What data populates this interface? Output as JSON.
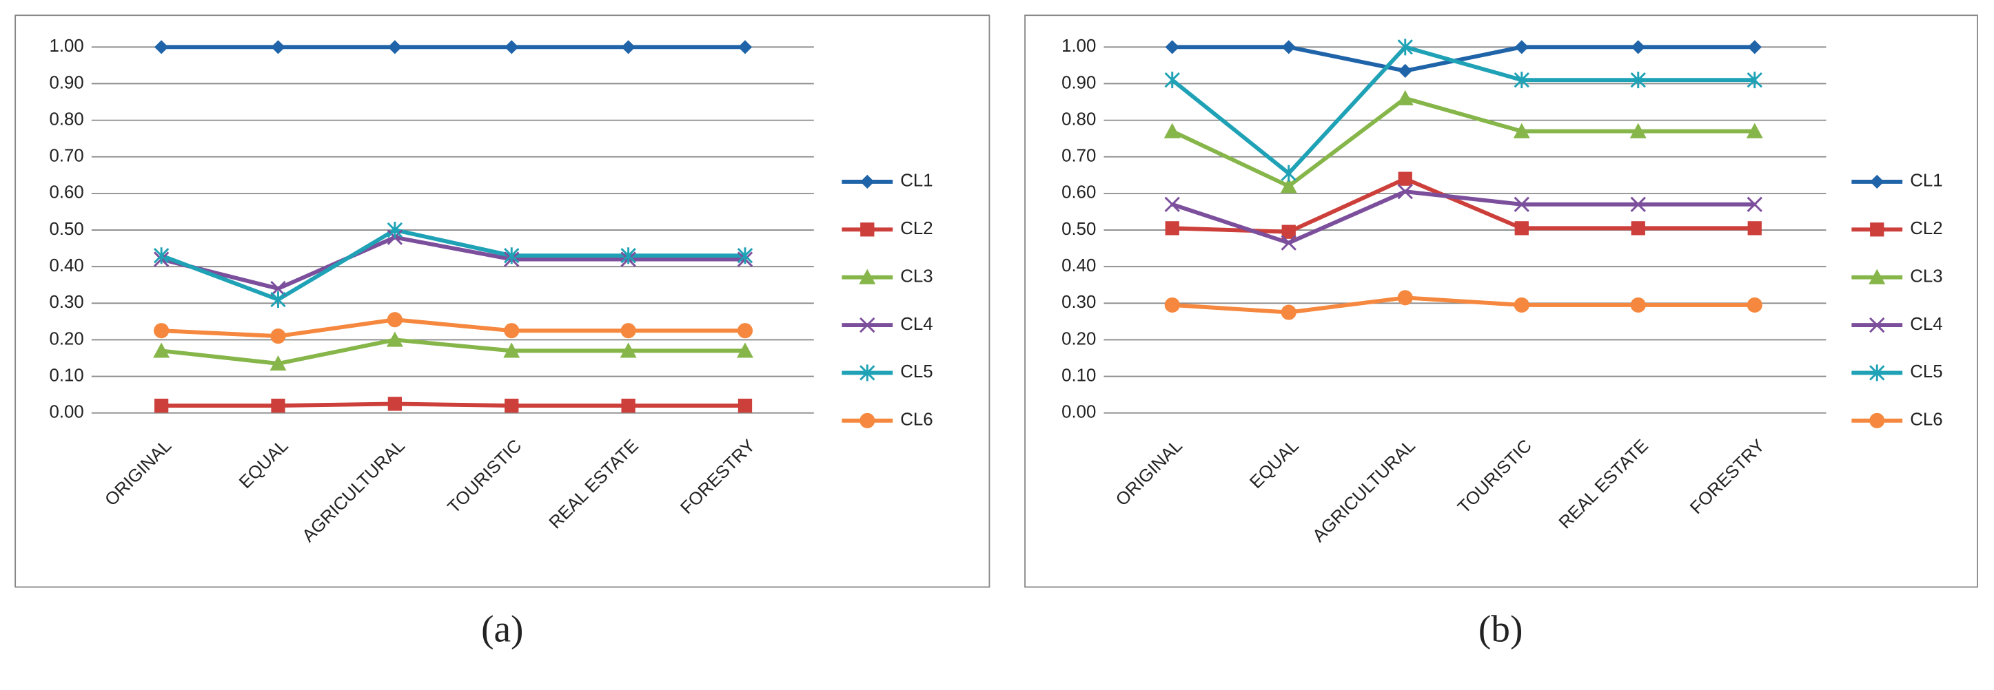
{
  "chart_data": [
    {
      "type": "line",
      "caption": "(a)",
      "categories": [
        "ORIGINAL",
        "EQUAL",
        "AGRICULTURAL",
        "TOURISTIC",
        "REAL ESTATE",
        "FORESTRY"
      ],
      "ylim": [
        0,
        1
      ],
      "yticks": [
        {
          "value": 0,
          "label": "0.00"
        },
        {
          "value": 0.1,
          "label": "0.10"
        },
        {
          "value": 0.2,
          "label": "0.20"
        },
        {
          "value": 0.3,
          "label": "0.30"
        },
        {
          "value": 0.4,
          "label": "0.40"
        },
        {
          "value": 0.5,
          "label": "0.50"
        },
        {
          "value": 0.6,
          "label": "0.60"
        },
        {
          "value": 0.7,
          "label": "0.70"
        },
        {
          "value": 0.8,
          "label": "0.80"
        },
        {
          "value": 0.9,
          "label": "0.90"
        },
        {
          "value": 1,
          "label": "1.00"
        }
      ],
      "grid": true,
      "legend": "right",
      "series": [
        {
          "name": "CL1",
          "color": "#1f64a8",
          "marker": "diamond",
          "values": [
            1,
            1,
            1,
            1,
            1,
            1
          ]
        },
        {
          "name": "CL2",
          "color": "#cc3f3a",
          "marker": "square",
          "values": [
            0.02,
            0.02,
            0.025,
            0.02,
            0.02,
            0.02
          ]
        },
        {
          "name": "CL3",
          "color": "#86b64a",
          "marker": "triangle",
          "values": [
            0.17,
            0.135,
            0.2,
            0.17,
            0.17,
            0.17
          ]
        },
        {
          "name": "CL4",
          "color": "#7c4f9c",
          "marker": "x",
          "values": [
            0.42,
            0.34,
            0.48,
            0.42,
            0.42,
            0.42
          ]
        },
        {
          "name": "CL5",
          "color": "#1fa2b6",
          "marker": "star",
          "values": [
            0.43,
            0.31,
            0.5,
            0.43,
            0.43,
            0.43
          ]
        },
        {
          "name": "CL6",
          "color": "#f5883e",
          "marker": "circle",
          "values": [
            0.225,
            0.21,
            0.255,
            0.225,
            0.225,
            0.225
          ]
        }
      ]
    },
    {
      "type": "line",
      "caption": "(b)",
      "categories": [
        "ORIGINAL",
        "EQUAL",
        "AGRICULTURAL",
        "TOURISTIC",
        "REAL ESTATE",
        "FORESTRY"
      ],
      "ylim": [
        0,
        1
      ],
      "yticks": [
        {
          "value": 0,
          "label": "0.00"
        },
        {
          "value": 0.1,
          "label": "0.10"
        },
        {
          "value": 0.2,
          "label": "0.20"
        },
        {
          "value": 0.3,
          "label": "0.30"
        },
        {
          "value": 0.4,
          "label": "0.40"
        },
        {
          "value": 0.5,
          "label": "0.50"
        },
        {
          "value": 0.6,
          "label": "0.60"
        },
        {
          "value": 0.7,
          "label": "0.70"
        },
        {
          "value": 0.8,
          "label": "0.80"
        },
        {
          "value": 0.9,
          "label": "0.90"
        },
        {
          "value": 1,
          "label": "1.00"
        }
      ],
      "grid": true,
      "legend": "right",
      "series": [
        {
          "name": "CL1",
          "color": "#1f64a8",
          "marker": "diamond",
          "values": [
            1,
            1,
            0.935,
            1,
            1,
            1
          ]
        },
        {
          "name": "CL2",
          "color": "#cc3f3a",
          "marker": "square",
          "values": [
            0.505,
            0.495,
            0.64,
            0.505,
            0.505,
            0.505
          ]
        },
        {
          "name": "CL3",
          "color": "#86b64a",
          "marker": "triangle",
          "values": [
            0.77,
            0.62,
            0.86,
            0.77,
            0.77,
            0.77
          ]
        },
        {
          "name": "CL4",
          "color": "#7c4f9c",
          "marker": "x",
          "values": [
            0.57,
            0.465,
            0.605,
            0.57,
            0.57,
            0.57
          ]
        },
        {
          "name": "CL5",
          "color": "#1fa2b6",
          "marker": "star",
          "values": [
            0.91,
            0.655,
            1,
            0.91,
            0.91,
            0.91
          ]
        },
        {
          "name": "CL6",
          "color": "#f5883e",
          "marker": "circle",
          "values": [
            0.295,
            0.275,
            0.315,
            0.295,
            0.295,
            0.295
          ]
        }
      ]
    }
  ]
}
